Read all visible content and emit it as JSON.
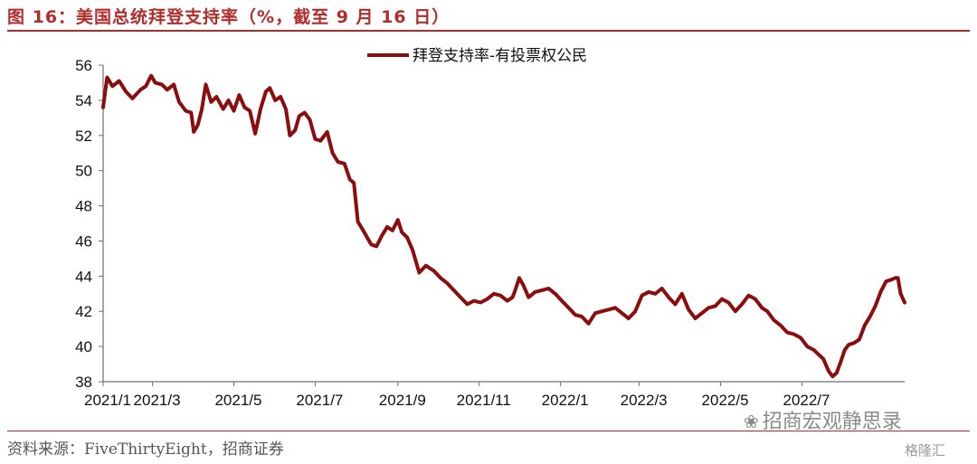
{
  "figure": {
    "title": "图 16：美国总统拜登支持率（%，截至 9 月 16 日）",
    "source": "资料来源：FiveThirtyEight，招商证券",
    "watermark": "招商宏观静思录",
    "corner_logo": "格隆汇"
  },
  "colors": {
    "accent": "#b22c2c",
    "series": "#8b0d0d",
    "axis": "#6f6f6f"
  },
  "chart_data": {
    "type": "line",
    "title": "",
    "xlabel": "",
    "ylabel": "",
    "x_ticks": [
      "2021/1",
      "2021/3",
      "2021/5",
      "2021/7",
      "2021/9",
      "2021/11",
      "2022/1",
      "2022/3",
      "2022/5",
      "2022/7"
    ],
    "y_ticks": [
      38,
      40,
      42,
      44,
      46,
      48,
      50,
      52,
      54,
      56
    ],
    "ylim": [
      38,
      56
    ],
    "xlim": [
      "2021-01-23",
      "2022-09-16"
    ],
    "grid": false,
    "legend": "top-center",
    "series": [
      {
        "name": "拜登支持率-有投票权公民",
        "points": [
          [
            "2021-01-23",
            53.6
          ],
          [
            "2021-01-26",
            55.3
          ],
          [
            "2021-01-30",
            54.8
          ],
          [
            "2021-02-04",
            55.1
          ],
          [
            "2021-02-09",
            54.5
          ],
          [
            "2021-02-14",
            54.1
          ],
          [
            "2021-02-20",
            54.6
          ],
          [
            "2021-02-24",
            54.8
          ],
          [
            "2021-02-28",
            55.4
          ],
          [
            "2021-03-03",
            55.0
          ],
          [
            "2021-03-08",
            54.9
          ],
          [
            "2021-03-12",
            54.6
          ],
          [
            "2021-03-17",
            54.9
          ],
          [
            "2021-03-21",
            53.9
          ],
          [
            "2021-03-26",
            53.4
          ],
          [
            "2021-03-30",
            53.3
          ],
          [
            "2021-04-01",
            52.2
          ],
          [
            "2021-04-04",
            52.6
          ],
          [
            "2021-04-07",
            53.5
          ],
          [
            "2021-04-10",
            54.9
          ],
          [
            "2021-04-14",
            53.9
          ],
          [
            "2021-04-18",
            54.2
          ],
          [
            "2021-04-23",
            53.5
          ],
          [
            "2021-04-27",
            54.0
          ],
          [
            "2021-05-01",
            53.4
          ],
          [
            "2021-05-05",
            54.3
          ],
          [
            "2021-05-09",
            53.6
          ],
          [
            "2021-05-13",
            53.4
          ],
          [
            "2021-05-17",
            52.1
          ],
          [
            "2021-05-21",
            53.5
          ],
          [
            "2021-05-25",
            54.5
          ],
          [
            "2021-05-28",
            54.7
          ],
          [
            "2021-06-01",
            54.0
          ],
          [
            "2021-06-05",
            54.2
          ],
          [
            "2021-06-09",
            53.5
          ],
          [
            "2021-06-12",
            52.0
          ],
          [
            "2021-06-16",
            52.3
          ],
          [
            "2021-06-19",
            53.1
          ],
          [
            "2021-06-23",
            53.3
          ],
          [
            "2021-06-27",
            52.9
          ],
          [
            "2021-07-01",
            51.8
          ],
          [
            "2021-07-05",
            51.7
          ],
          [
            "2021-07-10",
            52.2
          ],
          [
            "2021-07-14",
            51.0
          ],
          [
            "2021-07-18",
            50.5
          ],
          [
            "2021-07-23",
            50.4
          ],
          [
            "2021-07-27",
            49.5
          ],
          [
            "2021-07-30",
            49.3
          ],
          [
            "2021-08-02",
            47.1
          ],
          [
            "2021-08-06",
            46.6
          ],
          [
            "2021-08-09",
            46.2
          ],
          [
            "2021-08-12",
            45.8
          ],
          [
            "2021-08-16",
            45.7
          ],
          [
            "2021-08-20",
            46.3
          ],
          [
            "2021-08-24",
            46.8
          ],
          [
            "2021-08-28",
            46.6
          ],
          [
            "2021-09-01",
            47.2
          ],
          [
            "2021-09-04",
            46.5
          ],
          [
            "2021-09-08",
            46.2
          ],
          [
            "2021-09-12",
            45.5
          ],
          [
            "2021-09-17",
            44.2
          ],
          [
            "2021-09-22",
            44.6
          ],
          [
            "2021-09-28",
            44.3
          ],
          [
            "2021-10-03",
            43.9
          ],
          [
            "2021-10-08",
            43.6
          ],
          [
            "2021-10-13",
            43.2
          ],
          [
            "2021-10-18",
            42.8
          ],
          [
            "2021-10-23",
            42.4
          ],
          [
            "2021-10-28",
            42.6
          ],
          [
            "2021-11-02",
            42.5
          ],
          [
            "2021-11-07",
            42.7
          ],
          [
            "2021-11-12",
            43.0
          ],
          [
            "2021-11-17",
            42.9
          ],
          [
            "2021-11-22",
            42.6
          ],
          [
            "2021-11-26",
            42.8
          ],
          [
            "2021-11-28",
            43.2
          ],
          [
            "2021-12-01",
            43.9
          ],
          [
            "2021-12-04",
            43.5
          ],
          [
            "2021-12-08",
            42.8
          ],
          [
            "2021-12-13",
            43.1
          ],
          [
            "2021-12-18",
            43.2
          ],
          [
            "2021-12-23",
            43.3
          ],
          [
            "2021-12-28",
            43.0
          ],
          [
            "2022-01-02",
            42.6
          ],
          [
            "2022-01-07",
            42.2
          ],
          [
            "2022-01-12",
            41.8
          ],
          [
            "2022-01-17",
            41.7
          ],
          [
            "2022-01-22",
            41.3
          ],
          [
            "2022-01-27",
            41.9
          ],
          [
            "2022-02-01",
            42.0
          ],
          [
            "2022-02-06",
            42.1
          ],
          [
            "2022-02-11",
            42.2
          ],
          [
            "2022-02-16",
            41.9
          ],
          [
            "2022-02-21",
            41.6
          ],
          [
            "2022-02-26",
            42.0
          ],
          [
            "2022-03-03",
            42.9
          ],
          [
            "2022-03-08",
            43.1
          ],
          [
            "2022-03-13",
            43.0
          ],
          [
            "2022-03-18",
            43.3
          ],
          [
            "2022-03-23",
            42.8
          ],
          [
            "2022-03-28",
            42.4
          ],
          [
            "2022-04-02",
            43.0
          ],
          [
            "2022-04-07",
            42.1
          ],
          [
            "2022-04-12",
            41.6
          ],
          [
            "2022-04-17",
            41.9
          ],
          [
            "2022-04-22",
            42.2
          ],
          [
            "2022-04-27",
            42.3
          ],
          [
            "2022-05-02",
            42.7
          ],
          [
            "2022-05-07",
            42.5
          ],
          [
            "2022-05-12",
            42.0
          ],
          [
            "2022-05-17",
            42.4
          ],
          [
            "2022-05-22",
            42.9
          ],
          [
            "2022-05-27",
            42.7
          ],
          [
            "2022-06-01",
            42.2
          ],
          [
            "2022-06-05",
            42.0
          ],
          [
            "2022-06-10",
            41.5
          ],
          [
            "2022-06-15",
            41.2
          ],
          [
            "2022-06-20",
            40.8
          ],
          [
            "2022-06-25",
            40.7
          ],
          [
            "2022-06-30",
            40.5
          ],
          [
            "2022-07-05",
            40.0
          ],
          [
            "2022-07-10",
            39.8
          ],
          [
            "2022-07-14",
            39.5
          ],
          [
            "2022-07-17",
            39.3
          ],
          [
            "2022-07-21",
            38.6
          ],
          [
            "2022-07-24",
            38.3
          ],
          [
            "2022-07-27",
            38.5
          ],
          [
            "2022-07-30",
            39.1
          ],
          [
            "2022-08-02",
            39.8
          ],
          [
            "2022-08-05",
            40.1
          ],
          [
            "2022-08-09",
            40.2
          ],
          [
            "2022-08-13",
            40.4
          ],
          [
            "2022-08-17",
            41.2
          ],
          [
            "2022-08-21",
            41.7
          ],
          [
            "2022-08-25",
            42.3
          ],
          [
            "2022-08-29",
            43.1
          ],
          [
            "2022-09-02",
            43.7
          ],
          [
            "2022-09-06",
            43.8
          ],
          [
            "2022-09-09",
            43.9
          ],
          [
            "2022-09-11",
            43.9
          ],
          [
            "2022-09-13",
            43.0
          ],
          [
            "2022-09-16",
            42.5
          ]
        ]
      }
    ]
  }
}
